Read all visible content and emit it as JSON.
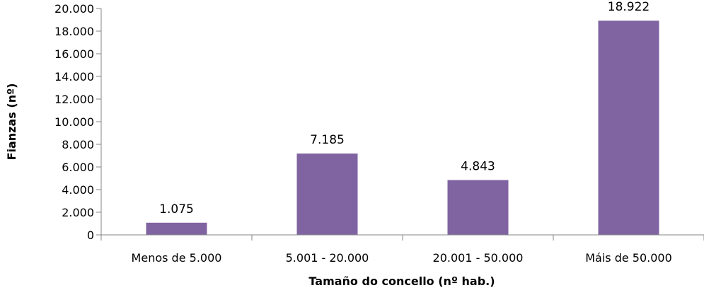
{
  "chart_data": {
    "type": "bar",
    "title": "",
    "xlabel": "Tamaño do concello (nº hab.)",
    "ylabel": "Fianzas (nº)",
    "categories": [
      "Menos de 5.000",
      "5.001 - 20.000",
      "20.001 - 50.000",
      "Máis de 50.000"
    ],
    "values": [
      1075,
      7185,
      4843,
      18922
    ],
    "data_labels": [
      "1.075",
      "7.185",
      "4.843",
      "18.922"
    ],
    "ylim": [
      0,
      20000
    ],
    "yticks": [
      0,
      2000,
      4000,
      6000,
      8000,
      10000,
      12000,
      14000,
      16000,
      18000,
      20000
    ],
    "ytick_labels": [
      "0",
      "2.000",
      "4.000",
      "6.000",
      "8.000",
      "10.000",
      "12.000",
      "14.000",
      "16.000",
      "18.000",
      "20.000"
    ],
    "grid": false,
    "legend": "none",
    "bar_color": "#8064A2",
    "axis_color": "#868686"
  }
}
